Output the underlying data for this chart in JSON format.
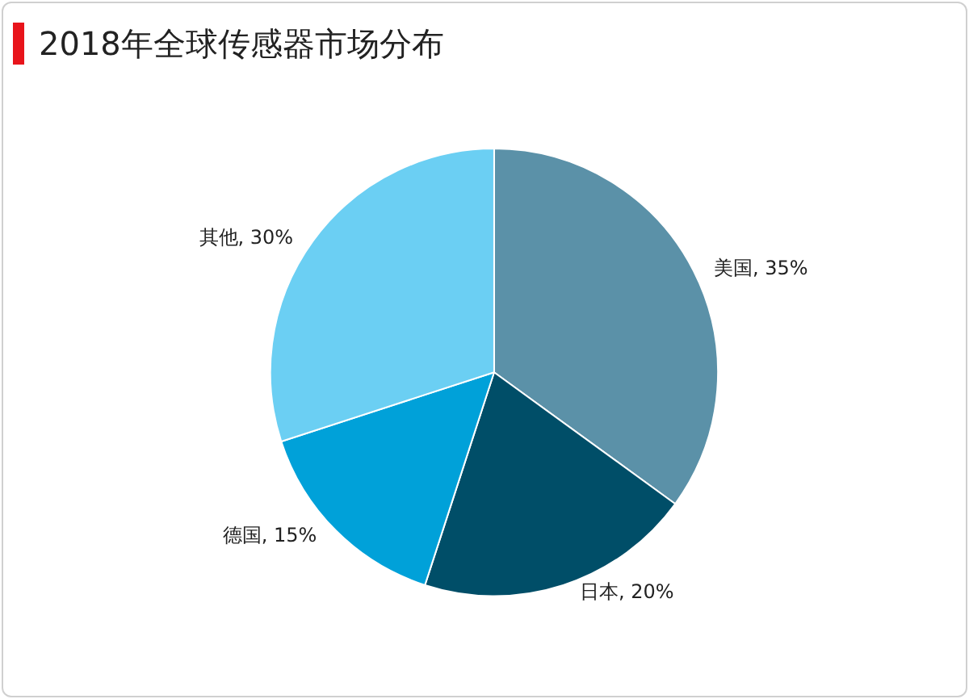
{
  "chart_data": {
    "type": "pie",
    "title": "2018年全球传感器市场分布",
    "categories": [
      "美国",
      "日本",
      "德国",
      "其他"
    ],
    "values": [
      35,
      20,
      15,
      30
    ],
    "colors": [
      "#5b91a8",
      "#004e68",
      "#00a1d9",
      "#6bcff3"
    ],
    "value_labels": [
      ", 35%",
      ", 20%",
      ", 15%",
      ", 30%"
    ],
    "legend": false
  }
}
